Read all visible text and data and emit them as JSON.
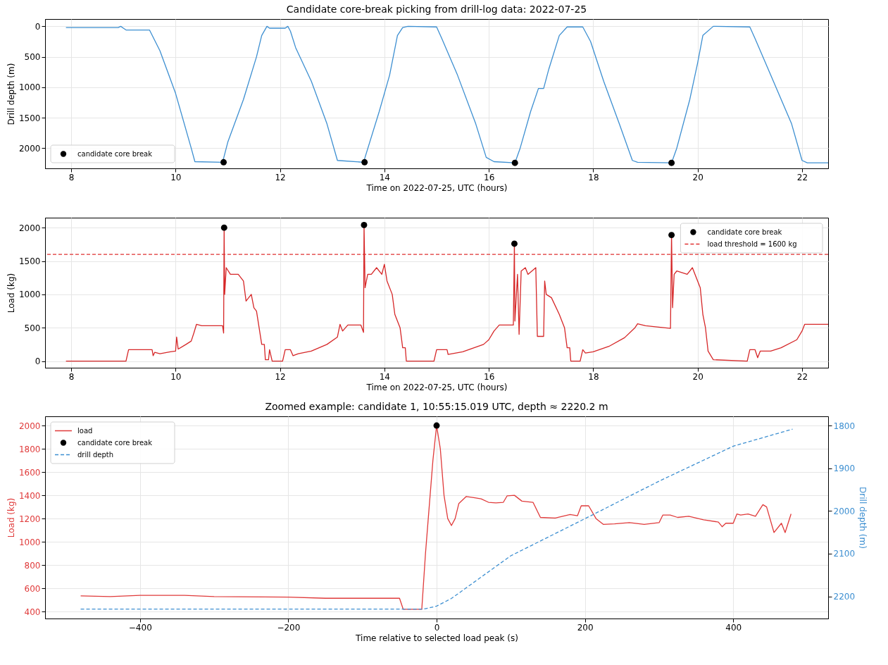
{
  "chart_data": [
    {
      "type": "line",
      "title": "Candidate core-break picking from drill-log data: 2022-07-25",
      "xlabel": "Time on 2022-07-25, UTC (hours)",
      "ylabel": "Drill depth (m)",
      "xlim": [
        7.5,
        22.5
      ],
      "xticks": [
        8,
        10,
        12,
        14,
        16,
        18,
        20,
        22
      ],
      "ylim": [
        2330,
        -120
      ],
      "yticks": [
        0,
        500,
        1000,
        1500,
        2000
      ],
      "grid": true,
      "legend": "bottom left",
      "series": [
        {
          "color": "#3d8fd1",
          "x": [
            7.9,
            8.9,
            8.95,
            9.0,
            9.05,
            9.5,
            9.7,
            10.0,
            10.3,
            10.37,
            10.9,
            11.0,
            11.3,
            11.55,
            11.65,
            11.75,
            11.8,
            12.1,
            12.15,
            12.2,
            12.3,
            12.6,
            12.9,
            13.1,
            13.6,
            13.9,
            14.1,
            14.25,
            14.35,
            14.45,
            15.0,
            15.1,
            15.4,
            15.75,
            15.95,
            16.1,
            16.5,
            16.6,
            16.8,
            16.95,
            17.05,
            17.15,
            17.35,
            17.5,
            17.8,
            17.95,
            18.2,
            18.5,
            18.75,
            18.85,
            19.5,
            19.6,
            19.85,
            20.0,
            20.1,
            20.3,
            21.0,
            21.1,
            21.4,
            21.8,
            22.0,
            22.1,
            22.5
          ],
          "values": [
            20,
            20,
            0,
            30,
            60,
            60,
            400,
            1100,
            2000,
            2220,
            2230,
            1900,
            1200,
            500,
            150,
            0,
            30,
            30,
            0,
            80,
            350,
            900,
            1600,
            2200,
            2230,
            1400,
            800,
            150,
            20,
            0,
            10,
            200,
            800,
            1600,
            2150,
            2220,
            2240,
            2000,
            1400,
            1020,
            1020,
            700,
            150,
            10,
            10,
            250,
            900,
            1600,
            2200,
            2230,
            2240,
            2000,
            1200,
            600,
            150,
            0,
            10,
            200,
            800,
            1600,
            2200,
            2240,
            2240
          ]
        },
        {
          "type": "scatter",
          "name": "candidate core break",
          "color": "#000000",
          "marker": "circle",
          "x": [
            10.92,
            13.62,
            16.5,
            19.5
          ],
          "values": [
            2230,
            2230,
            2240,
            2240
          ]
        }
      ]
    },
    {
      "type": "line",
      "xlabel": "Time on 2022-07-25, UTC (hours)",
      "ylabel": "Load (kg)",
      "xlim": [
        7.5,
        22.5
      ],
      "xticks": [
        8,
        10,
        12,
        14,
        16,
        18,
        20,
        22
      ],
      "ylim": [
        -100,
        2150
      ],
      "yticks": [
        0,
        500,
        1000,
        1500,
        2000
      ],
      "grid": true,
      "legend": "top right",
      "ref_lines": [
        {
          "axis": "y",
          "value": 1600,
          "label": "load threshold = 1600 kg",
          "color": "#e03030",
          "line_style": "dashed"
        }
      ],
      "series": [
        {
          "color": "#d62728",
          "x": [
            7.9,
            9.05,
            9.1,
            9.55,
            9.57,
            9.6,
            9.7,
            9.9,
            10.0,
            10.02,
            10.05,
            10.2,
            10.3,
            10.35,
            10.4,
            10.5,
            10.9,
            10.92,
            10.93,
            10.94,
            10.97,
            11.05,
            11.2,
            11.3,
            11.35,
            11.45,
            11.5,
            11.55,
            11.6,
            11.65,
            11.7,
            11.72,
            11.78,
            11.8,
            11.85,
            12.05,
            12.1,
            12.2,
            12.25,
            12.35,
            12.6,
            12.9,
            13.1,
            13.15,
            13.2,
            13.3,
            13.55,
            13.6,
            13.61,
            13.63,
            13.68,
            13.75,
            13.85,
            13.95,
            14.0,
            14.05,
            14.15,
            14.2,
            14.3,
            14.35,
            14.4,
            14.42,
            14.95,
            15.0,
            15.2,
            15.22,
            15.5,
            15.9,
            16.0,
            16.1,
            16.2,
            16.47,
            16.49,
            16.5,
            16.55,
            16.58,
            16.62,
            16.7,
            16.75,
            16.9,
            16.93,
            17.05,
            17.07,
            17.1,
            17.2,
            17.35,
            17.45,
            17.5,
            17.55,
            17.57,
            17.75,
            17.8,
            17.85,
            18.0,
            18.3,
            18.6,
            18.8,
            18.85,
            19.0,
            19.48,
            19.5,
            19.52,
            19.55,
            19.6,
            19.8,
            19.9,
            20.0,
            20.05,
            20.1,
            20.15,
            20.2,
            20.3,
            20.95,
            21.0,
            21.1,
            21.15,
            21.2,
            21.4,
            21.6,
            21.9,
            22.0,
            22.05,
            22.5
          ],
          "values": [
            0,
            0,
            170,
            170,
            80,
            130,
            110,
            140,
            150,
            360,
            180,
            250,
            300,
            420,
            550,
            530,
            530,
            420,
            2000,
            1000,
            1400,
            1300,
            1300,
            1200,
            900,
            1000,
            800,
            750,
            500,
            250,
            250,
            20,
            20,
            170,
            0,
            0,
            170,
            170,
            80,
            110,
            150,
            250,
            360,
            550,
            450,
            540,
            540,
            430,
            2040,
            1100,
            1300,
            1300,
            1400,
            1300,
            1450,
            1200,
            1000,
            700,
            500,
            200,
            200,
            0,
            0,
            170,
            170,
            100,
            140,
            250,
            320,
            450,
            540,
            540,
            1760,
            600,
            1300,
            400,
            1350,
            1400,
            1300,
            1400,
            370,
            370,
            1200,
            1000,
            950,
            700,
            500,
            200,
            200,
            0,
            0,
            170,
            120,
            140,
            220,
            350,
            500,
            560,
            530,
            490,
            1890,
            800,
            1300,
            1350,
            1300,
            1400,
            1200,
            1100,
            700,
            500,
            150,
            20,
            0,
            170,
            170,
            50,
            150,
            150,
            200,
            320,
            450,
            550,
            550
          ]
        },
        {
          "type": "scatter",
          "name": "candidate core break",
          "color": "#000000",
          "marker": "circle",
          "x": [
            10.93,
            13.61,
            16.49,
            19.5
          ],
          "values": [
            2000,
            2040,
            1760,
            1890
          ]
        }
      ]
    },
    {
      "type": "line",
      "title": "Zoomed example: candidate 1, 10:55:15.019 UTC, depth ≈ 2220.2 m",
      "xlabel": "Time relative to selected load peak (s)",
      "ylabel": "Load (kg)",
      "y2label": "Drill depth (m)",
      "xlim": [
        -528,
        528
      ],
      "xticks": [
        -400,
        -200,
        0,
        200,
        400
      ],
      "ylim": [
        341,
        2079
      ],
      "yticks": [
        400,
        600,
        800,
        1000,
        1200,
        1400,
        1600,
        1800,
        2000
      ],
      "y2lim": [
        2252,
        1778
      ],
      "y2ticks": [
        1800,
        1900,
        2000,
        2100,
        2200
      ],
      "grid": true,
      "legend": "top left",
      "series": [
        {
          "name": "load",
          "color": "#e03a3a",
          "x": [
            -480,
            -440,
            -400,
            -340,
            -300,
            -200,
            -150,
            -50,
            -45,
            -20,
            -15,
            -5,
            0,
            5,
            10,
            15,
            20,
            25,
            30,
            40,
            50,
            60,
            70,
            80,
            90,
            95,
            105,
            115,
            130,
            140,
            160,
            180,
            190,
            195,
            205,
            215,
            225,
            240,
            260,
            280,
            300,
            305,
            315,
            325,
            340,
            360,
            380,
            385,
            390,
            400,
            405,
            410,
            420,
            430,
            440,
            445,
            455,
            465,
            470,
            478
          ],
          "values": [
            535,
            530,
            540,
            540,
            530,
            525,
            515,
            515,
            420,
            420,
            900,
            1700,
            2000,
            1800,
            1400,
            1200,
            1140,
            1200,
            1330,
            1390,
            1380,
            1370,
            1340,
            1335,
            1340,
            1395,
            1400,
            1350,
            1340,
            1210,
            1205,
            1235,
            1225,
            1310,
            1310,
            1200,
            1150,
            1155,
            1165,
            1150,
            1165,
            1230,
            1230,
            1210,
            1220,
            1190,
            1170,
            1130,
            1160,
            1160,
            1240,
            1230,
            1240,
            1220,
            1320,
            1300,
            1080,
            1160,
            1080,
            1240
          ]
        },
        {
          "type": "scatter",
          "name": "candidate core break",
          "color": "#000000",
          "marker": "circle",
          "x": [
            0
          ],
          "values": [
            2000
          ]
        },
        {
          "name": "drill depth",
          "axis": "y2",
          "line_style": "dashed",
          "color": "#3d8fd1",
          "x": [
            -480,
            -18,
            0,
            20,
            100,
            200,
            300,
            400,
            480
          ],
          "values": [
            2230,
            2230,
            2223,
            2205,
            2105,
            2018,
            1930,
            1848,
            1808
          ]
        }
      ]
    }
  ]
}
